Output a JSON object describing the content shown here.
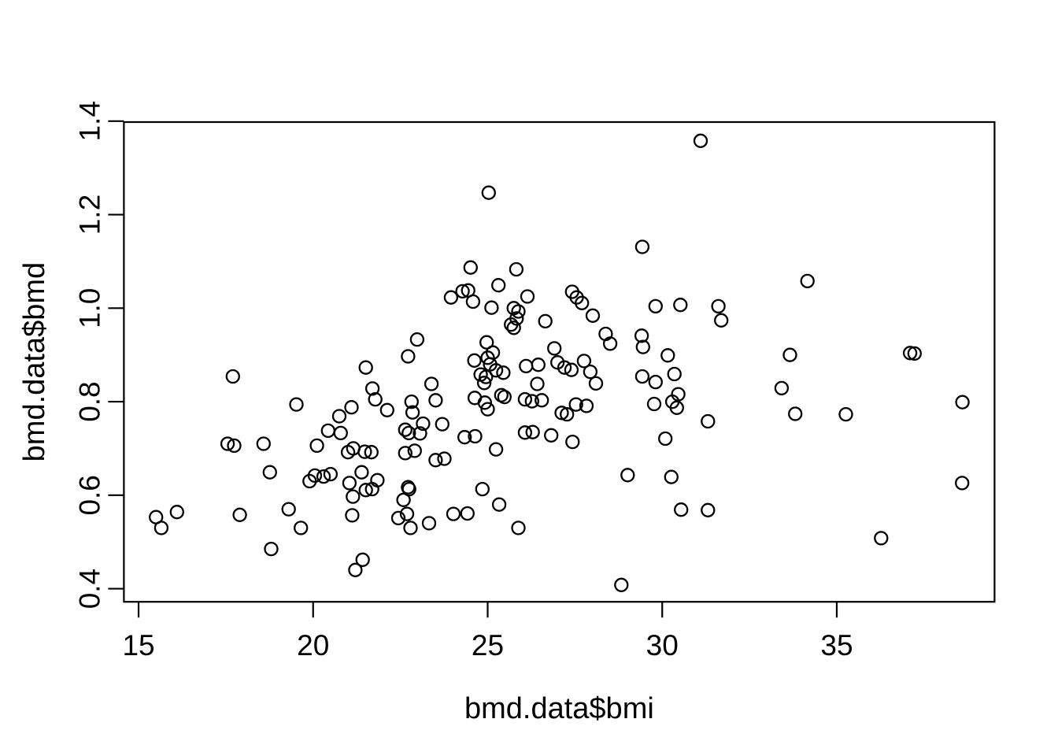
{
  "figure": {
    "background": "#ffffff",
    "foreground": "#000000"
  },
  "chart_data": {
    "type": "scatter",
    "title": "",
    "xlabel": "bmd.data$bmi",
    "ylabel": "bmd.data$bmd",
    "marker": "open-circle",
    "grid": false,
    "legend": null,
    "xlim": [
      14.58,
      39.52
    ],
    "ylim": [
      0.372,
      1.398
    ],
    "x_ticks": [
      15,
      20,
      25,
      30,
      35
    ],
    "x_tick_labels": [
      "15",
      "20",
      "25",
      "30",
      "35"
    ],
    "y_ticks": [
      0.4,
      0.6,
      0.8,
      1.0,
      1.2,
      1.4
    ],
    "y_tick_labels": [
      "0.4",
      "0.6",
      "0.8",
      "1.0",
      "1.2",
      "1.4"
    ],
    "points": [
      [
        15.5,
        0.553
      ],
      [
        15.65,
        0.53
      ],
      [
        16.1,
        0.564
      ],
      [
        17.55,
        0.71
      ],
      [
        17.7,
        0.854
      ],
      [
        17.74,
        0.706
      ],
      [
        17.9,
        0.558
      ],
      [
        18.58,
        0.71
      ],
      [
        18.76,
        0.649
      ],
      [
        18.8,
        0.485
      ],
      [
        19.3,
        0.57
      ],
      [
        19.52,
        0.794
      ],
      [
        19.65,
        0.53
      ],
      [
        19.9,
        0.63
      ],
      [
        20.05,
        0.642
      ],
      [
        20.11,
        0.706
      ],
      [
        20.3,
        0.64
      ],
      [
        20.43,
        0.738
      ],
      [
        20.5,
        0.645
      ],
      [
        20.75,
        0.769
      ],
      [
        20.79,
        0.733
      ],
      [
        21.0,
        0.692
      ],
      [
        21.04,
        0.626
      ],
      [
        21.1,
        0.788
      ],
      [
        21.12,
        0.557
      ],
      [
        21.14,
        0.597
      ],
      [
        21.15,
        0.7
      ],
      [
        21.21,
        0.44
      ],
      [
        21.39,
        0.649
      ],
      [
        21.42,
        0.462
      ],
      [
        21.48,
        0.693
      ],
      [
        21.51,
        0.611
      ],
      [
        21.51,
        0.873
      ],
      [
        21.67,
        0.692
      ],
      [
        21.69,
        0.613
      ],
      [
        21.7,
        0.828
      ],
      [
        21.78,
        0.805
      ],
      [
        21.84,
        0.632
      ],
      [
        22.12,
        0.782
      ],
      [
        22.44,
        0.551
      ],
      [
        22.59,
        0.59
      ],
      [
        22.64,
        0.69
      ],
      [
        22.64,
        0.74
      ],
      [
        22.69,
        0.56
      ],
      [
        22.72,
        0.617
      ],
      [
        22.72,
        0.897
      ],
      [
        22.74,
        0.733
      ],
      [
        22.75,
        0.613
      ],
      [
        22.79,
        0.53
      ],
      [
        22.82,
        0.8
      ],
      [
        22.85,
        0.777
      ],
      [
        22.91,
        0.695
      ],
      [
        22.98,
        0.933
      ],
      [
        23.06,
        0.732
      ],
      [
        23.15,
        0.753
      ],
      [
        23.32,
        0.54
      ],
      [
        23.39,
        0.838
      ],
      [
        23.51,
        0.675
      ],
      [
        23.51,
        0.803
      ],
      [
        23.7,
        0.752
      ],
      [
        23.76,
        0.678
      ],
      [
        23.95,
        1.023
      ],
      [
        24.02,
        0.56
      ],
      [
        24.28,
        1.036
      ],
      [
        24.34,
        0.724
      ],
      [
        24.42,
        0.561
      ],
      [
        24.44,
        1.038
      ],
      [
        24.51,
        1.087
      ],
      [
        24.58,
        1.014
      ],
      [
        24.62,
        0.888
      ],
      [
        24.63,
        0.808
      ],
      [
        24.64,
        0.726
      ],
      [
        24.8,
        0.858
      ],
      [
        24.85,
        0.613
      ],
      [
        24.9,
        0.84
      ],
      [
        24.92,
        0.798
      ],
      [
        24.95,
        0.853
      ],
      [
        24.97,
        0.927
      ],
      [
        25.0,
        0.784
      ],
      [
        25.0,
        0.894
      ],
      [
        25.03,
        1.247
      ],
      [
        25.07,
        0.88
      ],
      [
        25.11,
        1.001
      ],
      [
        25.15,
        0.905
      ],
      [
        25.24,
        0.698
      ],
      [
        25.24,
        0.867
      ],
      [
        25.31,
        1.049
      ],
      [
        25.33,
        0.58
      ],
      [
        25.39,
        0.814
      ],
      [
        25.45,
        0.862
      ],
      [
        25.48,
        0.81
      ],
      [
        25.67,
        0.965
      ],
      [
        25.75,
        0.958
      ],
      [
        25.75,
        1.0
      ],
      [
        25.82,
        1.083
      ],
      [
        25.83,
        0.978
      ],
      [
        25.88,
        0.53
      ],
      [
        25.88,
        0.993
      ],
      [
        26.07,
        0.734
      ],
      [
        26.07,
        0.805
      ],
      [
        26.1,
        0.876
      ],
      [
        26.14,
        1.025
      ],
      [
        26.27,
        0.801
      ],
      [
        26.29,
        0.735
      ],
      [
        26.42,
        0.838
      ],
      [
        26.45,
        0.879
      ],
      [
        26.55,
        0.803
      ],
      [
        26.65,
        0.972
      ],
      [
        26.82,
        0.728
      ],
      [
        26.91,
        0.914
      ],
      [
        27.0,
        0.884
      ],
      [
        27.12,
        0.776
      ],
      [
        27.2,
        0.873
      ],
      [
        27.27,
        0.773
      ],
      [
        27.4,
        0.868
      ],
      [
        27.42,
        1.035
      ],
      [
        27.43,
        0.714
      ],
      [
        27.53,
        0.794
      ],
      [
        27.55,
        1.023
      ],
      [
        27.7,
        1.011
      ],
      [
        27.76,
        0.887
      ],
      [
        27.83,
        0.791
      ],
      [
        27.94,
        0.864
      ],
      [
        28.01,
        0.984
      ],
      [
        28.1,
        0.839
      ],
      [
        28.38,
        0.945
      ],
      [
        28.51,
        0.924
      ],
      [
        28.83,
        0.408
      ],
      [
        29.01,
        0.643
      ],
      [
        29.41,
        0.941
      ],
      [
        29.43,
        0.854
      ],
      [
        29.43,
        1.131
      ],
      [
        29.45,
        0.917
      ],
      [
        29.77,
        0.795
      ],
      [
        29.81,
        0.842
      ],
      [
        29.81,
        1.004
      ],
      [
        30.09,
        0.721
      ],
      [
        30.16,
        0.899
      ],
      [
        30.26,
        0.639
      ],
      [
        30.29,
        0.8
      ],
      [
        30.35,
        0.859
      ],
      [
        30.42,
        0.787
      ],
      [
        30.46,
        0.816
      ],
      [
        30.52,
        1.007
      ],
      [
        30.54,
        0.569
      ],
      [
        31.1,
        1.358
      ],
      [
        31.31,
        0.568
      ],
      [
        31.31,
        0.758
      ],
      [
        31.61,
        1.004
      ],
      [
        31.69,
        0.974
      ],
      [
        33.42,
        0.829
      ],
      [
        33.66,
        0.9
      ],
      [
        33.81,
        0.774
      ],
      [
        34.16,
        1.058
      ],
      [
        35.26,
        0.773
      ],
      [
        36.27,
        0.508
      ],
      [
        37.1,
        0.904
      ],
      [
        37.23,
        0.903
      ],
      [
        38.59,
        0.626
      ],
      [
        38.6,
        0.799
      ]
    ]
  }
}
